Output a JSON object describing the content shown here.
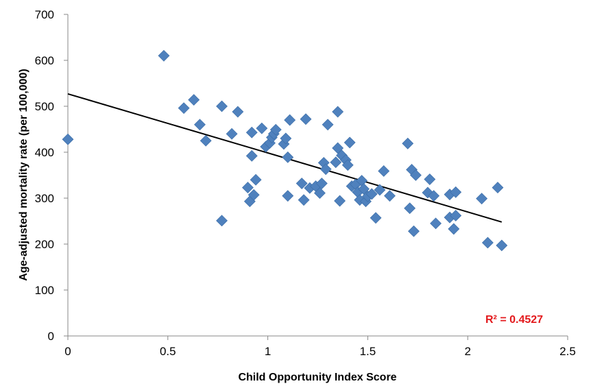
{
  "chart_data": {
    "type": "scatter",
    "title": "",
    "xlabel": "Child Opportunity Index Score",
    "ylabel": "Age-adjusted mortality rate (per 100,000)",
    "xlim": [
      0,
      2.5
    ],
    "ylim": [
      0,
      700
    ],
    "x_ticks": [
      0,
      0.5,
      1,
      1.5,
      2,
      2.5
    ],
    "x_tick_labels": [
      "0",
      "0.5",
      "1",
      "1.5",
      "2",
      "2.5"
    ],
    "y_ticks": [
      0,
      100,
      200,
      300,
      400,
      500,
      600,
      700
    ],
    "y_tick_labels": [
      "0",
      "100",
      "200",
      "300",
      "400",
      "500",
      "600",
      "700"
    ],
    "grid": false,
    "legend": "none",
    "marker": "diamond",
    "marker_color": "#4F81BD",
    "trendline": {
      "type": "linear",
      "x": [
        0,
        2.17
      ],
      "y": [
        527,
        248
      ],
      "color": "#000000"
    },
    "annotation": {
      "text": "R² = 0.4527",
      "color": "#E3191C"
    },
    "points": [
      {
        "x": 0.0,
        "y": 428
      },
      {
        "x": 0.48,
        "y": 610
      },
      {
        "x": 0.58,
        "y": 496
      },
      {
        "x": 0.63,
        "y": 514
      },
      {
        "x": 0.66,
        "y": 460
      },
      {
        "x": 0.69,
        "y": 425
      },
      {
        "x": 0.77,
        "y": 500
      },
      {
        "x": 0.77,
        "y": 251
      },
      {
        "x": 0.82,
        "y": 440
      },
      {
        "x": 0.85,
        "y": 488
      },
      {
        "x": 0.9,
        "y": 323
      },
      {
        "x": 0.91,
        "y": 293
      },
      {
        "x": 0.92,
        "y": 392
      },
      {
        "x": 0.92,
        "y": 443
      },
      {
        "x": 0.93,
        "y": 307
      },
      {
        "x": 0.94,
        "y": 340
      },
      {
        "x": 0.97,
        "y": 452
      },
      {
        "x": 0.99,
        "y": 412
      },
      {
        "x": 1.01,
        "y": 420
      },
      {
        "x": 1.02,
        "y": 432
      },
      {
        "x": 1.03,
        "y": 440
      },
      {
        "x": 1.04,
        "y": 449
      },
      {
        "x": 1.08,
        "y": 418
      },
      {
        "x": 1.09,
        "y": 430
      },
      {
        "x": 1.1,
        "y": 389
      },
      {
        "x": 1.1,
        "y": 305
      },
      {
        "x": 1.11,
        "y": 470
      },
      {
        "x": 1.17,
        "y": 332
      },
      {
        "x": 1.18,
        "y": 296
      },
      {
        "x": 1.19,
        "y": 472
      },
      {
        "x": 1.21,
        "y": 322
      },
      {
        "x": 1.24,
        "y": 326
      },
      {
        "x": 1.26,
        "y": 311
      },
      {
        "x": 1.27,
        "y": 332
      },
      {
        "x": 1.28,
        "y": 377
      },
      {
        "x": 1.29,
        "y": 363
      },
      {
        "x": 1.3,
        "y": 460
      },
      {
        "x": 1.34,
        "y": 378
      },
      {
        "x": 1.35,
        "y": 488
      },
      {
        "x": 1.35,
        "y": 409
      },
      {
        "x": 1.36,
        "y": 294
      },
      {
        "x": 1.37,
        "y": 393
      },
      {
        "x": 1.39,
        "y": 383
      },
      {
        "x": 1.4,
        "y": 372
      },
      {
        "x": 1.41,
        "y": 421
      },
      {
        "x": 1.42,
        "y": 326
      },
      {
        "x": 1.44,
        "y": 330
      },
      {
        "x": 1.45,
        "y": 313
      },
      {
        "x": 1.46,
        "y": 296
      },
      {
        "x": 1.47,
        "y": 338
      },
      {
        "x": 1.48,
        "y": 320
      },
      {
        "x": 1.49,
        "y": 293
      },
      {
        "x": 1.5,
        "y": 304
      },
      {
        "x": 1.52,
        "y": 309
      },
      {
        "x": 1.54,
        "y": 257
      },
      {
        "x": 1.56,
        "y": 318
      },
      {
        "x": 1.58,
        "y": 359
      },
      {
        "x": 1.61,
        "y": 305
      },
      {
        "x": 1.7,
        "y": 419
      },
      {
        "x": 1.71,
        "y": 278
      },
      {
        "x": 1.72,
        "y": 362
      },
      {
        "x": 1.73,
        "y": 228
      },
      {
        "x": 1.74,
        "y": 350
      },
      {
        "x": 1.8,
        "y": 312
      },
      {
        "x": 1.81,
        "y": 341
      },
      {
        "x": 1.83,
        "y": 305
      },
      {
        "x": 1.84,
        "y": 245
      },
      {
        "x": 1.91,
        "y": 258
      },
      {
        "x": 1.91,
        "y": 308
      },
      {
        "x": 1.93,
        "y": 233
      },
      {
        "x": 1.94,
        "y": 262
      },
      {
        "x": 1.94,
        "y": 313
      },
      {
        "x": 2.07,
        "y": 299
      },
      {
        "x": 2.1,
        "y": 203
      },
      {
        "x": 2.15,
        "y": 323
      },
      {
        "x": 2.17,
        "y": 197
      }
    ]
  }
}
